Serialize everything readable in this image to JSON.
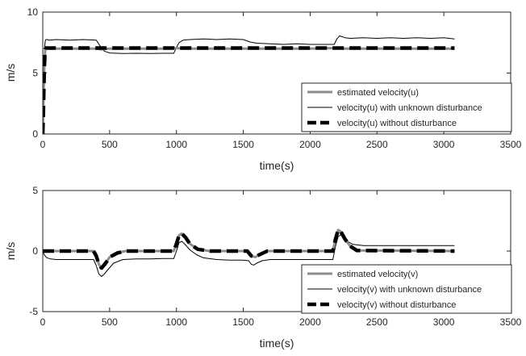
{
  "chart_data": [
    {
      "type": "line",
      "xlabel": "time(s)",
      "ylabel": "m/s",
      "xlim": [
        0,
        3500
      ],
      "ylim": [
        0,
        10
      ],
      "xticks": [
        0,
        500,
        1000,
        1500,
        2000,
        2500,
        3000,
        3500
      ],
      "yticks": [
        0,
        5,
        10
      ],
      "grid": false,
      "legend_position": "bottom-right",
      "series": [
        {
          "name": "estimated velocity(u)",
          "color": "#8c8c8c",
          "style": "solid-thick",
          "x": [
            0,
            3,
            6,
            10,
            14,
            18,
            22,
            26,
            30,
            40,
            60,
            100,
            400,
            440,
            500,
            950,
            1000,
            1040,
            1100,
            1500,
            1550,
            2000,
            2200,
            2250,
            3080
          ],
          "y": [
            0,
            1.5,
            3,
            5,
            6.2,
            6.8,
            7.0,
            7.05,
            7.05,
            7.0,
            7.0,
            7.0,
            7.0,
            6.95,
            7.0,
            7.0,
            7.05,
            7.0,
            7.0,
            7.0,
            7.0,
            7.0,
            7.05,
            7.0,
            7.0
          ]
        },
        {
          "name": "velocity(u) with unknown disturbance",
          "color": "#000000",
          "style": "solid-thin",
          "x": [
            0,
            2,
            4,
            8,
            12,
            16,
            20,
            25,
            30,
            50,
            100,
            200,
            300,
            400,
            430,
            460,
            500,
            600,
            700,
            800,
            900,
            980,
            1000,
            1020,
            1050,
            1100,
            1200,
            1300,
            1400,
            1500,
            1550,
            1600,
            1700,
            1800,
            1900,
            2000,
            2100,
            2180,
            2200,
            2220,
            2260,
            2300,
            2400,
            2500,
            2600,
            2700,
            2800,
            2900,
            3000,
            3080
          ],
          "y": [
            0,
            1,
            2.5,
            4.5,
            6.5,
            7.4,
            7.7,
            7.75,
            7.75,
            7.7,
            7.75,
            7.7,
            7.75,
            7.7,
            7.2,
            6.8,
            6.65,
            6.6,
            6.62,
            6.6,
            6.62,
            6.62,
            7.1,
            7.5,
            7.7,
            7.75,
            7.8,
            7.75,
            7.8,
            7.75,
            7.55,
            7.45,
            7.4,
            7.35,
            7.4,
            7.35,
            7.35,
            7.35,
            7.8,
            8.05,
            7.9,
            7.85,
            7.9,
            7.85,
            7.9,
            7.85,
            7.9,
            7.85,
            7.9,
            7.8
          ]
        },
        {
          "name": "velocity(u) without disturbance",
          "color": "#000000",
          "style": "dashed-thick",
          "x": [
            0,
            4,
            8,
            12,
            16,
            20,
            25,
            30,
            3080
          ],
          "y": [
            0,
            1.5,
            3.5,
            5.5,
            6.6,
            7.0,
            7.05,
            7.05,
            7.05
          ]
        }
      ]
    },
    {
      "type": "line",
      "xlabel": "time(s)",
      "ylabel": "m/s",
      "xlim": [
        0,
        3500
      ],
      "ylim": [
        -5,
        5
      ],
      "xticks": [
        0,
        500,
        1000,
        1500,
        2000,
        2500,
        3000,
        3500
      ],
      "yticks": [
        -5,
        0,
        5
      ],
      "grid": false,
      "legend_position": "bottom-right",
      "series": [
        {
          "name": "estimated velocity(v)",
          "color": "#8c8c8c",
          "style": "solid-thick",
          "x": [
            0,
            380,
            400,
            420,
            440,
            470,
            500,
            560,
            620,
            980,
            1000,
            1020,
            1040,
            1070,
            1100,
            1160,
            1250,
            1530,
            1560,
            1590,
            1620,
            1680,
            2170,
            2190,
            2210,
            2230,
            2260,
            2300,
            2350,
            3080
          ],
          "y": [
            0,
            0,
            -0.4,
            -1.1,
            -1.4,
            -1.0,
            -0.5,
            -0.15,
            0,
            0,
            0.6,
            1.3,
            1.45,
            1.1,
            0.6,
            0.15,
            0,
            0,
            -0.4,
            -0.5,
            -0.3,
            0,
            0,
            1.0,
            1.75,
            1.6,
            1.0,
            0.4,
            0.05,
            0
          ]
        },
        {
          "name": "velocity(v) with unknown disturbance",
          "color": "#000000",
          "style": "solid-thin",
          "x": [
            0,
            10,
            30,
            60,
            100,
            200,
            300,
            380,
            400,
            420,
            440,
            460,
            490,
            530,
            600,
            700,
            800,
            900,
            980,
            1000,
            1020,
            1040,
            1060,
            1100,
            1150,
            1200,
            1300,
            1400,
            1500,
            1540,
            1560,
            1580,
            1600,
            1640,
            1700,
            1800,
            1900,
            2000,
            2100,
            2170,
            2190,
            2210,
            2230,
            2250,
            2280,
            2320,
            2400,
            2600,
            2800,
            3000,
            3080
          ],
          "y": [
            0,
            -0.3,
            -0.55,
            -0.65,
            -0.7,
            -0.7,
            -0.7,
            -0.7,
            -1.2,
            -1.9,
            -2.1,
            -1.9,
            -1.5,
            -1.0,
            -0.7,
            -0.65,
            -0.65,
            -0.62,
            -0.62,
            0,
            0.7,
            0.8,
            0.6,
            0.1,
            -0.3,
            -0.55,
            -0.7,
            -0.75,
            -0.75,
            -0.8,
            -1.1,
            -1.15,
            -1.0,
            -0.8,
            -0.7,
            -0.7,
            -0.7,
            -0.7,
            -0.7,
            -0.7,
            0.4,
            1.2,
            1.35,
            1.1,
            0.8,
            0.55,
            0.45,
            0.45,
            0.45,
            0.45,
            0.45
          ]
        },
        {
          "name": "velocity(v) without disturbance",
          "color": "#000000",
          "style": "dashed-thick",
          "x": [
            0,
            380,
            400,
            420,
            440,
            470,
            500,
            560,
            620,
            980,
            1000,
            1020,
            1040,
            1070,
            1100,
            1160,
            1250,
            1530,
            1560,
            1590,
            1620,
            1680,
            2170,
            2190,
            2210,
            2230,
            2260,
            2300,
            2350,
            3080
          ],
          "y": [
            0,
            0,
            -0.4,
            -1.1,
            -1.4,
            -1.0,
            -0.5,
            -0.15,
            0,
            0,
            0.6,
            1.3,
            1.45,
            1.1,
            0.6,
            0.15,
            0,
            0,
            -0.4,
            -0.5,
            -0.3,
            0,
            0,
            1.0,
            1.75,
            1.6,
            1.0,
            0.4,
            0.05,
            0
          ]
        }
      ]
    }
  ]
}
